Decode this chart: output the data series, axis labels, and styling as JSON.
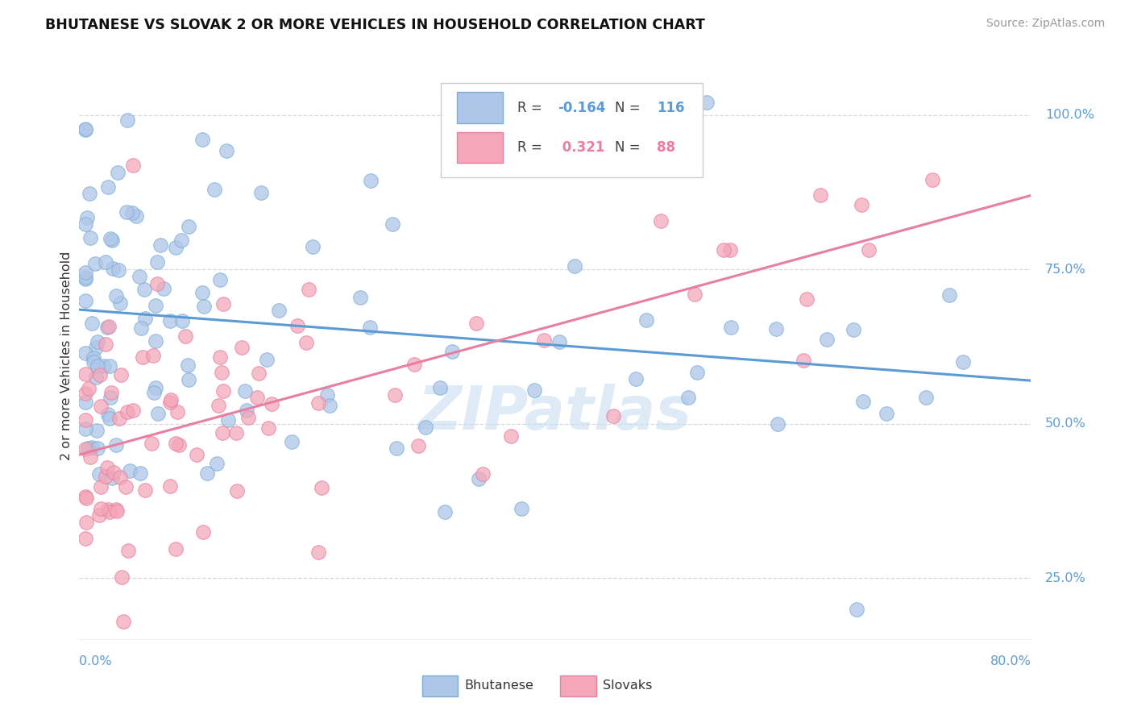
{
  "title": "BHUTANESE VS SLOVAK 2 OR MORE VEHICLES IN HOUSEHOLD CORRELATION CHART",
  "source_text": "Source: ZipAtlas.com",
  "ylabel_label": "2 or more Vehicles in Household",
  "x_min": 0.0,
  "x_max": 80.0,
  "y_min": 15.0,
  "y_max": 107.0,
  "ytick_vals": [
    25.0,
    50.0,
    75.0,
    100.0
  ],
  "blue_color": "#aec6e8",
  "pink_color": "#f4a7b9",
  "blue_edge": "#7baed4",
  "pink_edge": "#e87fa0",
  "trend_blue": "#5b9bd5",
  "trend_pink": "#e87fa0",
  "blue_trend_x0": 0.0,
  "blue_trend_y0": 68.5,
  "blue_trend_x1": 80.0,
  "blue_trend_y1": 57.0,
  "pink_trend_x0": 0.0,
  "pink_trend_y0": 45.0,
  "pink_trend_x1": 80.0,
  "pink_trend_y1": 87.0,
  "watermark_color": "#c8dff0",
  "background": "#ffffff",
  "grid_color": "#d8d8d8",
  "R_blue": "-0.164",
  "N_blue": "116",
  "R_pink": "0.321",
  "N_pink": "88",
  "label_blue": "Bhutanese",
  "label_pink": "Slovaks"
}
